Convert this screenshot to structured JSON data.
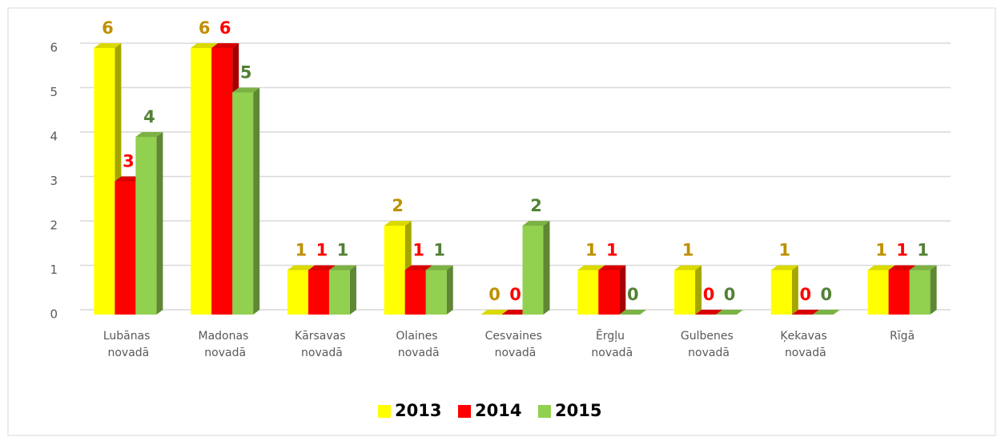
{
  "chart_data": {
    "type": "bar3d",
    "categories": [
      "Lubānas novadā",
      "Madonas novadā",
      "Kārsavas novadā",
      "Olaines novadā",
      "Cesvaines novadā",
      "Ērgļu novadā",
      "Gulbenes novadā",
      "Ķekavas novadā",
      "Rīgā"
    ],
    "series": [
      {
        "name": "2013",
        "color": "#ffff00",
        "label_color": "#bf9000",
        "values": [
          6,
          6,
          1,
          2,
          0,
          1,
          1,
          1,
          1
        ]
      },
      {
        "name": "2014",
        "color": "#ff0000",
        "label_color": "#ff0000",
        "values": [
          3,
          6,
          1,
          1,
          0,
          1,
          0,
          0,
          1
        ]
      },
      {
        "name": "2015",
        "color": "#92d050",
        "label_color": "#538135",
        "values": [
          4,
          5,
          1,
          1,
          2,
          0,
          0,
          0,
          1
        ]
      }
    ],
    "ylim": [
      0,
      6
    ],
    "yticks": [
      0,
      1,
      2,
      3,
      4,
      5,
      6
    ],
    "grid": true,
    "legend": "bottom"
  }
}
